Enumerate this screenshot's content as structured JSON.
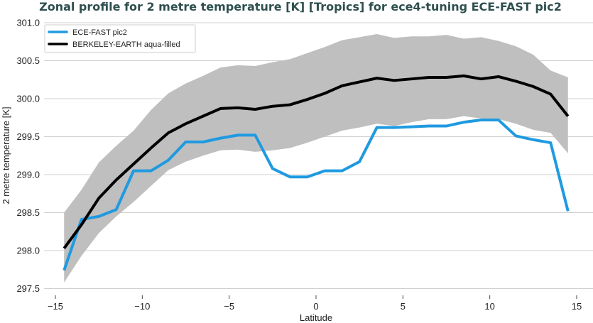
{
  "chart_data": {
    "type": "line",
    "title": "Zonal profile for 2 metre temperature [K] [Tropics] for ece4-tuning ECE-FAST pic2",
    "xlabel": "Latitude",
    "ylabel": "2 metre temperature [K]",
    "xlim": [
      -15.9,
      15.9
    ],
    "ylim": [
      297.5,
      301.0
    ],
    "xticks": [
      -15,
      -10,
      -5,
      0,
      5,
      10,
      15
    ],
    "xtick_labels": [
      "−15",
      "−10",
      "−5",
      "0",
      "5",
      "10",
      "15"
    ],
    "yticks": [
      297.5,
      298.0,
      298.5,
      299.0,
      299.5,
      300.0,
      300.5,
      301.0
    ],
    "ytick_labels": [
      "297.5",
      "298.0",
      "298.5",
      "299.0",
      "299.5",
      "300.0",
      "300.5",
      "301.0"
    ],
    "grid": "horizontal",
    "legend_position": "top-left",
    "x": [
      -14.5,
      -13.5,
      -12.5,
      -11.5,
      -10.5,
      -9.5,
      -8.5,
      -7.5,
      -6.5,
      -5.5,
      -4.5,
      -3.5,
      -2.5,
      -1.5,
      -0.5,
      0.5,
      1.5,
      2.5,
      3.5,
      4.5,
      5.5,
      6.5,
      7.5,
      8.5,
      9.5,
      10.5,
      11.5,
      12.5,
      13.5,
      14.5
    ],
    "series": [
      {
        "name": "ECE-FAST pic2",
        "color": "#1f9ae0",
        "values": [
          297.74,
          298.41,
          298.45,
          298.54,
          299.05,
          299.05,
          299.19,
          299.43,
          299.43,
          299.48,
          299.52,
          299.52,
          299.08,
          298.97,
          298.97,
          299.05,
          299.05,
          299.17,
          299.62,
          299.62,
          299.63,
          299.64,
          299.64,
          299.69,
          299.72,
          299.72,
          299.51,
          299.46,
          299.42,
          298.52
        ]
      },
      {
        "name": "BERKELEY-EARTH aqua-filled",
        "color": "#000000",
        "values": [
          298.03,
          298.34,
          298.69,
          298.93,
          299.14,
          299.35,
          299.55,
          299.67,
          299.77,
          299.87,
          299.88,
          299.86,
          299.9,
          299.92,
          299.99,
          300.07,
          300.17,
          300.22,
          300.27,
          300.24,
          300.26,
          300.28,
          300.28,
          300.3,
          300.26,
          300.29,
          300.23,
          300.16,
          300.06,
          299.77
        ]
      }
    ],
    "band": {
      "color": "#bfbfbf",
      "upper": [
        298.5,
        298.8,
        299.16,
        299.38,
        299.58,
        299.85,
        300.07,
        300.2,
        300.3,
        300.41,
        300.44,
        300.43,
        300.48,
        300.52,
        300.6,
        300.68,
        300.77,
        300.81,
        300.85,
        300.8,
        300.82,
        300.82,
        300.84,
        300.79,
        300.81,
        300.76,
        300.69,
        300.58,
        300.37,
        300.28
      ],
      "lower": [
        297.58,
        297.93,
        298.23,
        298.45,
        298.64,
        298.85,
        299.06,
        299.17,
        299.25,
        299.32,
        299.33,
        299.3,
        299.32,
        299.35,
        299.42,
        299.5,
        299.58,
        299.62,
        299.67,
        299.64,
        299.69,
        299.73,
        299.73,
        299.77,
        299.74,
        299.73,
        299.67,
        299.59,
        299.55,
        299.28
      ]
    }
  }
}
